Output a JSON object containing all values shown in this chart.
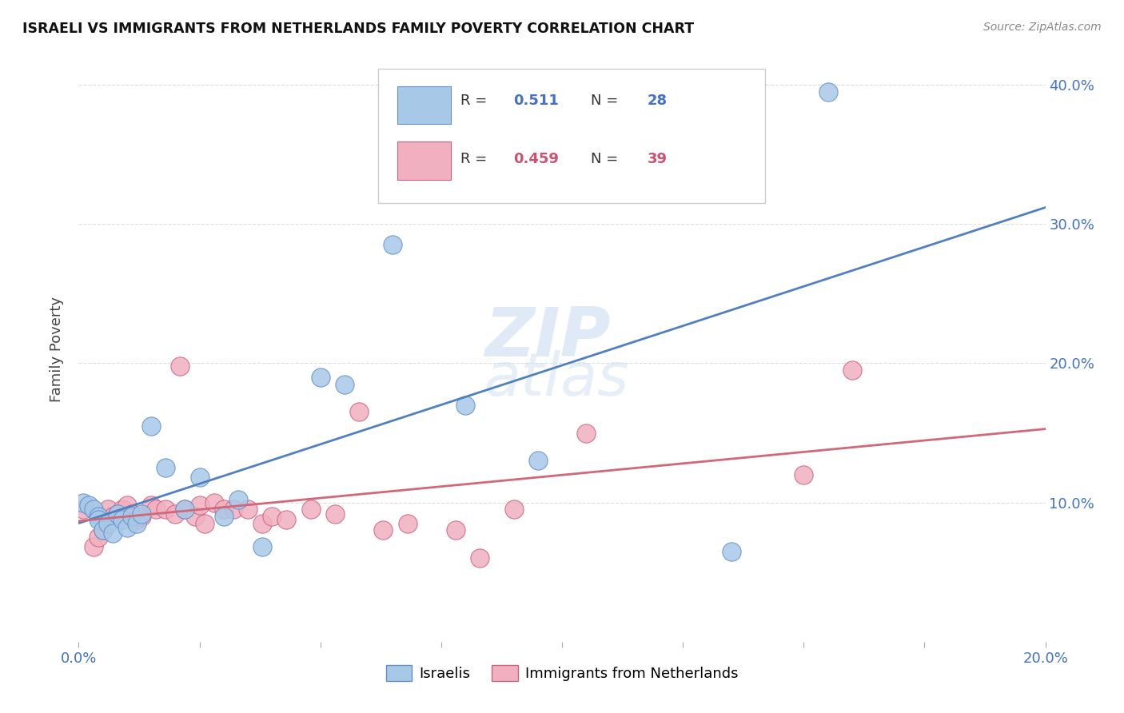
{
  "title": "ISRAELI VS IMMIGRANTS FROM NETHERLANDS FAMILY POVERTY CORRELATION CHART",
  "source": "Source: ZipAtlas.com",
  "ylabel": "Family Poverty",
  "legend_label1": "Israelis",
  "legend_label2": "Immigrants from Netherlands",
  "r1": "0.511",
  "n1": "28",
  "r2": "0.459",
  "n2": "39",
  "color_blue": "#a8c8e8",
  "color_blue_edge": "#6090c8",
  "color_pink": "#f0b0c0",
  "color_pink_edge": "#d06080",
  "color_line_blue": "#5080c0",
  "color_line_pink": "#d06878",
  "color_text_blue": "#4472c4",
  "color_text_pink": "#d05070",
  "xlim": [
    0.0,
    0.2
  ],
  "ylim": [
    0.0,
    0.42
  ],
  "israelis_x": [
    0.001,
    0.002,
    0.003,
    0.004,
    0.004,
    0.005,
    0.006,
    0.007,
    0.008,
    0.009,
    0.01,
    0.011,
    0.012,
    0.013,
    0.015,
    0.018,
    0.022,
    0.025,
    0.03,
    0.033,
    0.038,
    0.05,
    0.055,
    0.065,
    0.08,
    0.095,
    0.135,
    0.155
  ],
  "israelis_y": [
    0.1,
    0.098,
    0.095,
    0.09,
    0.088,
    0.08,
    0.085,
    0.078,
    0.092,
    0.088,
    0.082,
    0.09,
    0.085,
    0.092,
    0.155,
    0.125,
    0.095,
    0.118,
    0.09,
    0.102,
    0.068,
    0.19,
    0.185,
    0.285,
    0.17,
    0.13,
    0.065,
    0.395
  ],
  "netherlands_x": [
    0.001,
    0.003,
    0.004,
    0.005,
    0.006,
    0.007,
    0.008,
    0.009,
    0.01,
    0.011,
    0.012,
    0.013,
    0.015,
    0.016,
    0.018,
    0.02,
    0.021,
    0.022,
    0.024,
    0.025,
    0.026,
    0.028,
    0.03,
    0.032,
    0.035,
    0.038,
    0.04,
    0.043,
    0.048,
    0.053,
    0.058,
    0.063,
    0.068,
    0.078,
    0.083,
    0.09,
    0.105,
    0.15,
    0.16
  ],
  "netherlands_y": [
    0.095,
    0.068,
    0.075,
    0.08,
    0.095,
    0.09,
    0.092,
    0.095,
    0.098,
    0.092,
    0.088,
    0.09,
    0.098,
    0.095,
    0.095,
    0.092,
    0.198,
    0.095,
    0.09,
    0.098,
    0.085,
    0.1,
    0.095,
    0.095,
    0.095,
    0.085,
    0.09,
    0.088,
    0.095,
    0.092,
    0.165,
    0.08,
    0.085,
    0.08,
    0.06,
    0.095,
    0.15,
    0.12,
    0.195
  ],
  "watermark_top": "ZIP",
  "watermark_bottom": "atlas",
  "background_color": "#ffffff",
  "grid_color": "#dddddd"
}
